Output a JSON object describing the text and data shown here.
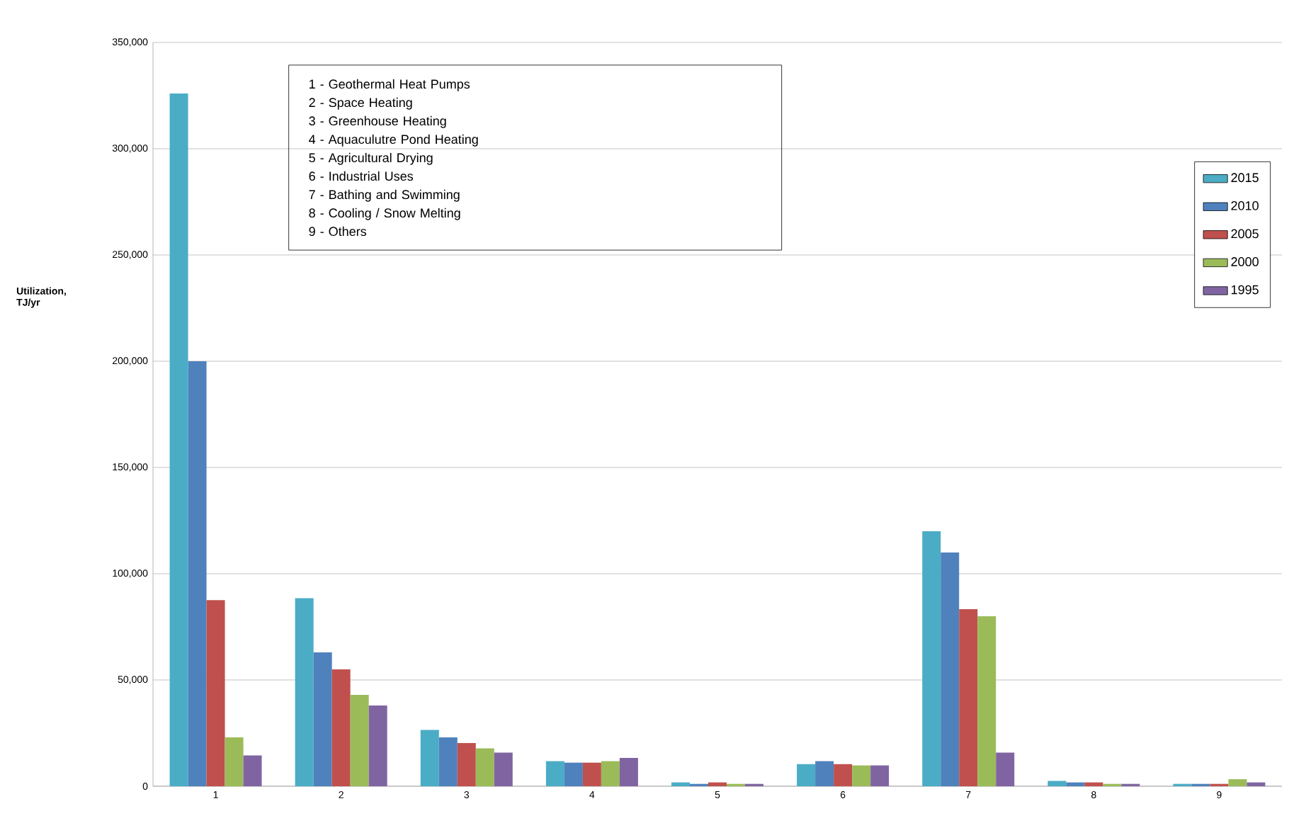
{
  "chart_data": {
    "type": "bar",
    "ylabel": "Utilization, TJ/yr",
    "categories": [
      "1",
      "2",
      "3",
      "4",
      "5",
      "6",
      "7",
      "8",
      "9"
    ],
    "series": [
      {
        "name": "2015",
        "color": "#4bacc6",
        "values": [
          326000,
          88500,
          26500,
          11800,
          1800,
          10400,
          120000,
          2500,
          1100
        ]
      },
      {
        "name": "2010",
        "color": "#4f81bd",
        "values": [
          200000,
          63000,
          23000,
          11100,
          1100,
          11800,
          110000,
          1800,
          1100
        ]
      },
      {
        "name": "2005",
        "color": "#c0504d",
        "values": [
          87600,
          55000,
          20300,
          11100,
          1800,
          10400,
          83300,
          1800,
          1100
        ]
      },
      {
        "name": "2000",
        "color": "#9bbb59",
        "values": [
          23000,
          43000,
          17800,
          11800,
          1100,
          9800,
          80000,
          1100,
          3300
        ]
      },
      {
        "name": "1995",
        "color": "#8064a2",
        "values": [
          14500,
          38000,
          15800,
          13300,
          1100,
          9800,
          15800,
          1100,
          1800
        ]
      }
    ],
    "ylim": [
      0,
      350000
    ],
    "yticks": [
      {
        "value": 0,
        "label": "0"
      },
      {
        "value": 50000,
        "label": "50,000"
      },
      {
        "value": 100000,
        "label": "100,000"
      },
      {
        "value": 150000,
        "label": "150,000"
      },
      {
        "value": 200000,
        "label": "200,000"
      },
      {
        "value": 250000,
        "label": "250,000"
      },
      {
        "value": 300000,
        "label": "300,000"
      },
      {
        "value": 350000,
        "label": "350,000"
      }
    ],
    "grid": "y",
    "legend": "top right",
    "annotations": [
      "1 - Geothermal Heat Pumps",
      "2 - Space Heating",
      "3 - Greenhouse Heating",
      "4 - Aquaculutre Pond Heating",
      "5 - Agricultural Drying",
      "6 - Industrial Uses",
      "7 - Bathing and Swimming",
      "8 - Cooling / Snow Melting",
      "9 - Others"
    ]
  }
}
